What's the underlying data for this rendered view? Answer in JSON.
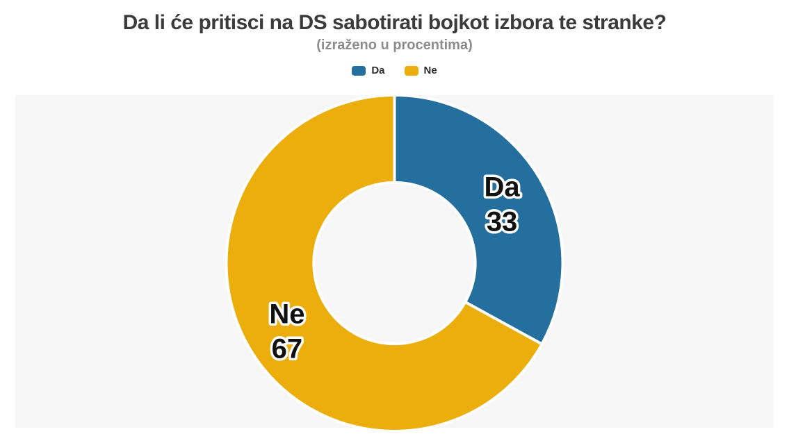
{
  "header": {
    "title": "Da li će pritisci na DS sabotirati bojkot izbora te stranke?",
    "subtitle": "(izraženo u procentima)"
  },
  "legend": {
    "items": [
      {
        "label": "Da",
        "color": "#246F9E"
      },
      {
        "label": "Ne",
        "color": "#ECAE0D"
      }
    ]
  },
  "colors": {
    "da_slice": "#246F9E",
    "ne_slice": "#ECAE0D",
    "panel_background": "#F7F7F7",
    "page_background": "#FFFFFF",
    "title_text": "#3B3B3B",
    "subtitle_text": "#8C8C8C",
    "slice_label_text": "#101010",
    "slice_label_outline": "#FFFFFF"
  },
  "chart_data": {
    "type": "pie",
    "donut": true,
    "title": "Da li će pritisci na DS sabotirati bojkot izbora te stranke?",
    "subtitle": "(izraženo u procentima)",
    "unit": "percent",
    "categories": [
      "Da",
      "Ne"
    ],
    "values": [
      33,
      67
    ],
    "colors": [
      "#246F9E",
      "#ECAE0D"
    ],
    "start_angle_deg": 0,
    "direction": "clockwise",
    "legend_position": "top",
    "inner_radius_ratio": 0.48,
    "labels_inside": true,
    "background": "#F7F7F7"
  }
}
